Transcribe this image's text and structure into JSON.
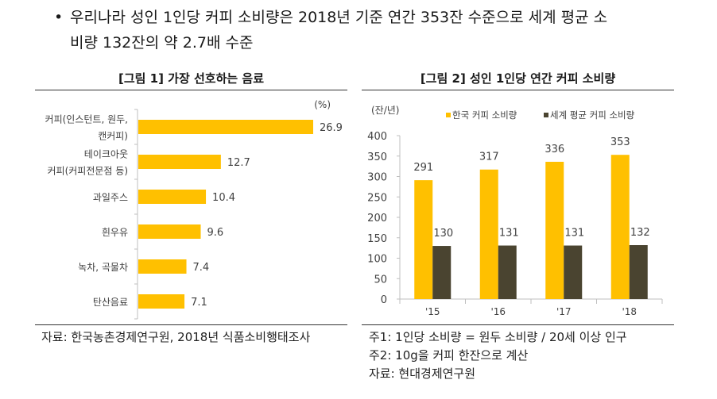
{
  "bullet": {
    "symbol": "•",
    "line1": "우리나라 성인 1인당 커피 소비량은 2018년 기준 연간 353잔 수준으로 세계 평균 소",
    "line2": "비량 132잔의 약 2.7배 수준"
  },
  "colors": {
    "korea": "#FFC000",
    "world": "#4A4430",
    "axis": "#BFBFBF",
    "text": "#404040"
  },
  "chart_data": [
    {
      "type": "bar",
      "orientation": "horizontal",
      "title": "[그림 1] 가장 선호하는 음료",
      "unit_label": "(%)",
      "categories": [
        [
          "커피(인스턴트, 원두,",
          "캔커피)"
        ],
        [
          "테이크아웃",
          "커피(커피전문점 등)"
        ],
        [
          "과일주스"
        ],
        [
          "흰우유"
        ],
        [
          "녹차, 곡물차"
        ],
        [
          "탄산음료"
        ]
      ],
      "values": [
        26.9,
        12.7,
        10.4,
        9.6,
        7.4,
        7.1
      ],
      "value_labels": [
        "26.9",
        "12.7",
        "10.4",
        "9.6",
        "7.4",
        "7.1"
      ],
      "xlim": [
        0,
        26.9
      ],
      "grid": false,
      "source": "자료: 한국농촌경제연구원, 2018년 식품소비행태조사"
    },
    {
      "type": "bar",
      "orientation": "vertical",
      "title": "[그림 2] 성인 1인당 연간 커피 소비량",
      "ylabel": "(잔/년)",
      "categories": [
        "'15",
        "'16",
        "'17",
        "'18"
      ],
      "series": [
        {
          "name": "한국 커피 소비량",
          "values": [
            291,
            317,
            336,
            353
          ]
        },
        {
          "name": "세계 평균 커피 소비량",
          "values": [
            130,
            131,
            131,
            132
          ]
        }
      ],
      "yticks": [
        "0",
        "50",
        "100",
        "150",
        "200",
        "250",
        "300",
        "350",
        "400"
      ],
      "ylim": [
        0,
        400
      ],
      "legend": "top",
      "grid": false,
      "notes": [
        "주1: 1인당 소비량 = 원두 소비량 / 20세 이상 인구",
        "주2: 10g을 커피 한잔으로 계산",
        "자료: 현대경제연구원"
      ]
    }
  ]
}
